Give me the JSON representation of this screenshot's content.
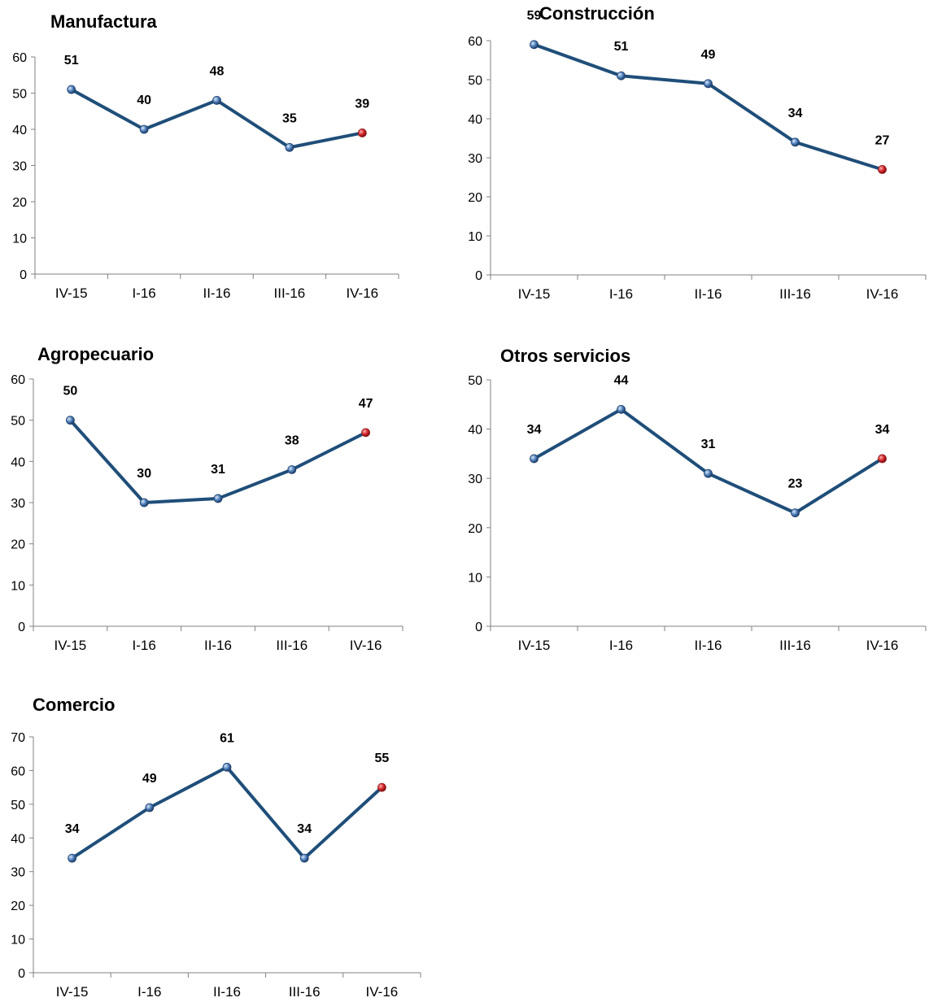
{
  "colors": {
    "line": "#1F4E79",
    "marker": "#4F81BD",
    "marker_highlight": "#D9262B",
    "axis": "#808080"
  },
  "chart_data": [
    {
      "type": "line",
      "title": "Manufactura",
      "categories": [
        "IV-15",
        "I-16",
        "II-16",
        "III-16",
        "IV-16"
      ],
      "yticks": [
        "0",
        "10",
        "20",
        "30",
        "40",
        "50",
        "60"
      ],
      "ylim": [
        0,
        60
      ],
      "values": [
        51,
        40,
        48,
        35,
        39
      ],
      "value_labels": [
        "51",
        "40",
        "48",
        "35",
        "39"
      ],
      "highlight_last": true,
      "grid": false
    },
    {
      "type": "line",
      "title": "Construcción",
      "categories": [
        "IV-15",
        "I-16",
        "II-16",
        "III-16",
        "IV-16"
      ],
      "yticks": [
        "0",
        "10",
        "20",
        "30",
        "40",
        "50",
        "60"
      ],
      "ylim": [
        0,
        60
      ],
      "values": [
        59,
        51,
        49,
        34,
        27
      ],
      "value_labels": [
        "59",
        "51",
        "49",
        "34",
        "27"
      ],
      "highlight_last": true,
      "grid": false
    },
    {
      "type": "line",
      "title": "Agropecuario",
      "categories": [
        "IV-15",
        "I-16",
        "II-16",
        "III-16",
        "IV-16"
      ],
      "yticks": [
        "0",
        "10",
        "20",
        "30",
        "40",
        "50",
        "60"
      ],
      "ylim": [
        0,
        60
      ],
      "values": [
        50,
        30,
        31,
        38,
        47
      ],
      "value_labels": [
        "50",
        "30",
        "31",
        "38",
        "47"
      ],
      "highlight_last": true,
      "grid": false
    },
    {
      "type": "line",
      "title": "Otros servicios",
      "categories": [
        "IV-15",
        "I-16",
        "II-16",
        "III-16",
        "IV-16"
      ],
      "yticks": [
        "0",
        "10",
        "20",
        "30",
        "40",
        "50"
      ],
      "ylim": [
        0,
        50
      ],
      "values": [
        34,
        44,
        31,
        23,
        34
      ],
      "value_labels": [
        "34",
        "44",
        "31",
        "23",
        "34"
      ],
      "highlight_last": true,
      "grid": false
    },
    {
      "type": "line",
      "title": "Comercio",
      "categories": [
        "IV-15",
        "I-16",
        "II-16",
        "III-16",
        "IV-16"
      ],
      "yticks": [
        "0",
        "10",
        "20",
        "30",
        "40",
        "50",
        "60",
        "70"
      ],
      "ylim": [
        0,
        70
      ],
      "values": [
        34,
        49,
        61,
        34,
        55
      ],
      "value_labels": [
        "34",
        "49",
        "61",
        "34",
        "55"
      ],
      "highlight_last": true,
      "grid": false
    }
  ]
}
